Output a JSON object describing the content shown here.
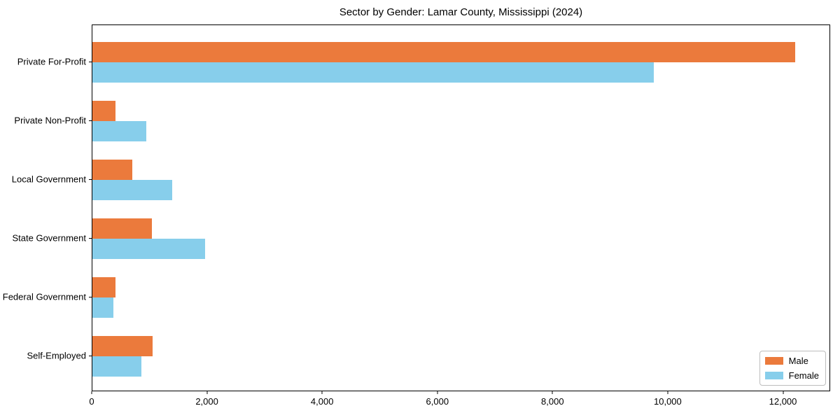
{
  "chart_data": {
    "type": "bar",
    "orientation": "horizontal",
    "title": "Sector by Gender: Lamar County, Mississippi (2024)",
    "categories": [
      "Private For-Profit",
      "Private Non-Profit",
      "Local Government",
      "State Government",
      "Federal Government",
      "Self-Employed"
    ],
    "series": [
      {
        "name": "Male",
        "color": "#EB7A3C",
        "values": [
          12200,
          400,
          690,
          1030,
          400,
          1050
        ]
      },
      {
        "name": "Female",
        "color": "#87CEEB",
        "values": [
          9750,
          930,
          1380,
          1950,
          360,
          850
        ]
      }
    ],
    "xlabel": "",
    "ylabel": "",
    "xlim": [
      0,
      12820
    ],
    "xticks": [
      0,
      2000,
      4000,
      6000,
      8000,
      10000,
      12000
    ],
    "xtick_labels": [
      "0",
      "2,000",
      "4,000",
      "6,000",
      "8,000",
      "10,000",
      "12,000"
    ],
    "grid": false,
    "legend": {
      "position": "lower right",
      "entries": [
        "Male",
        "Female"
      ]
    }
  }
}
